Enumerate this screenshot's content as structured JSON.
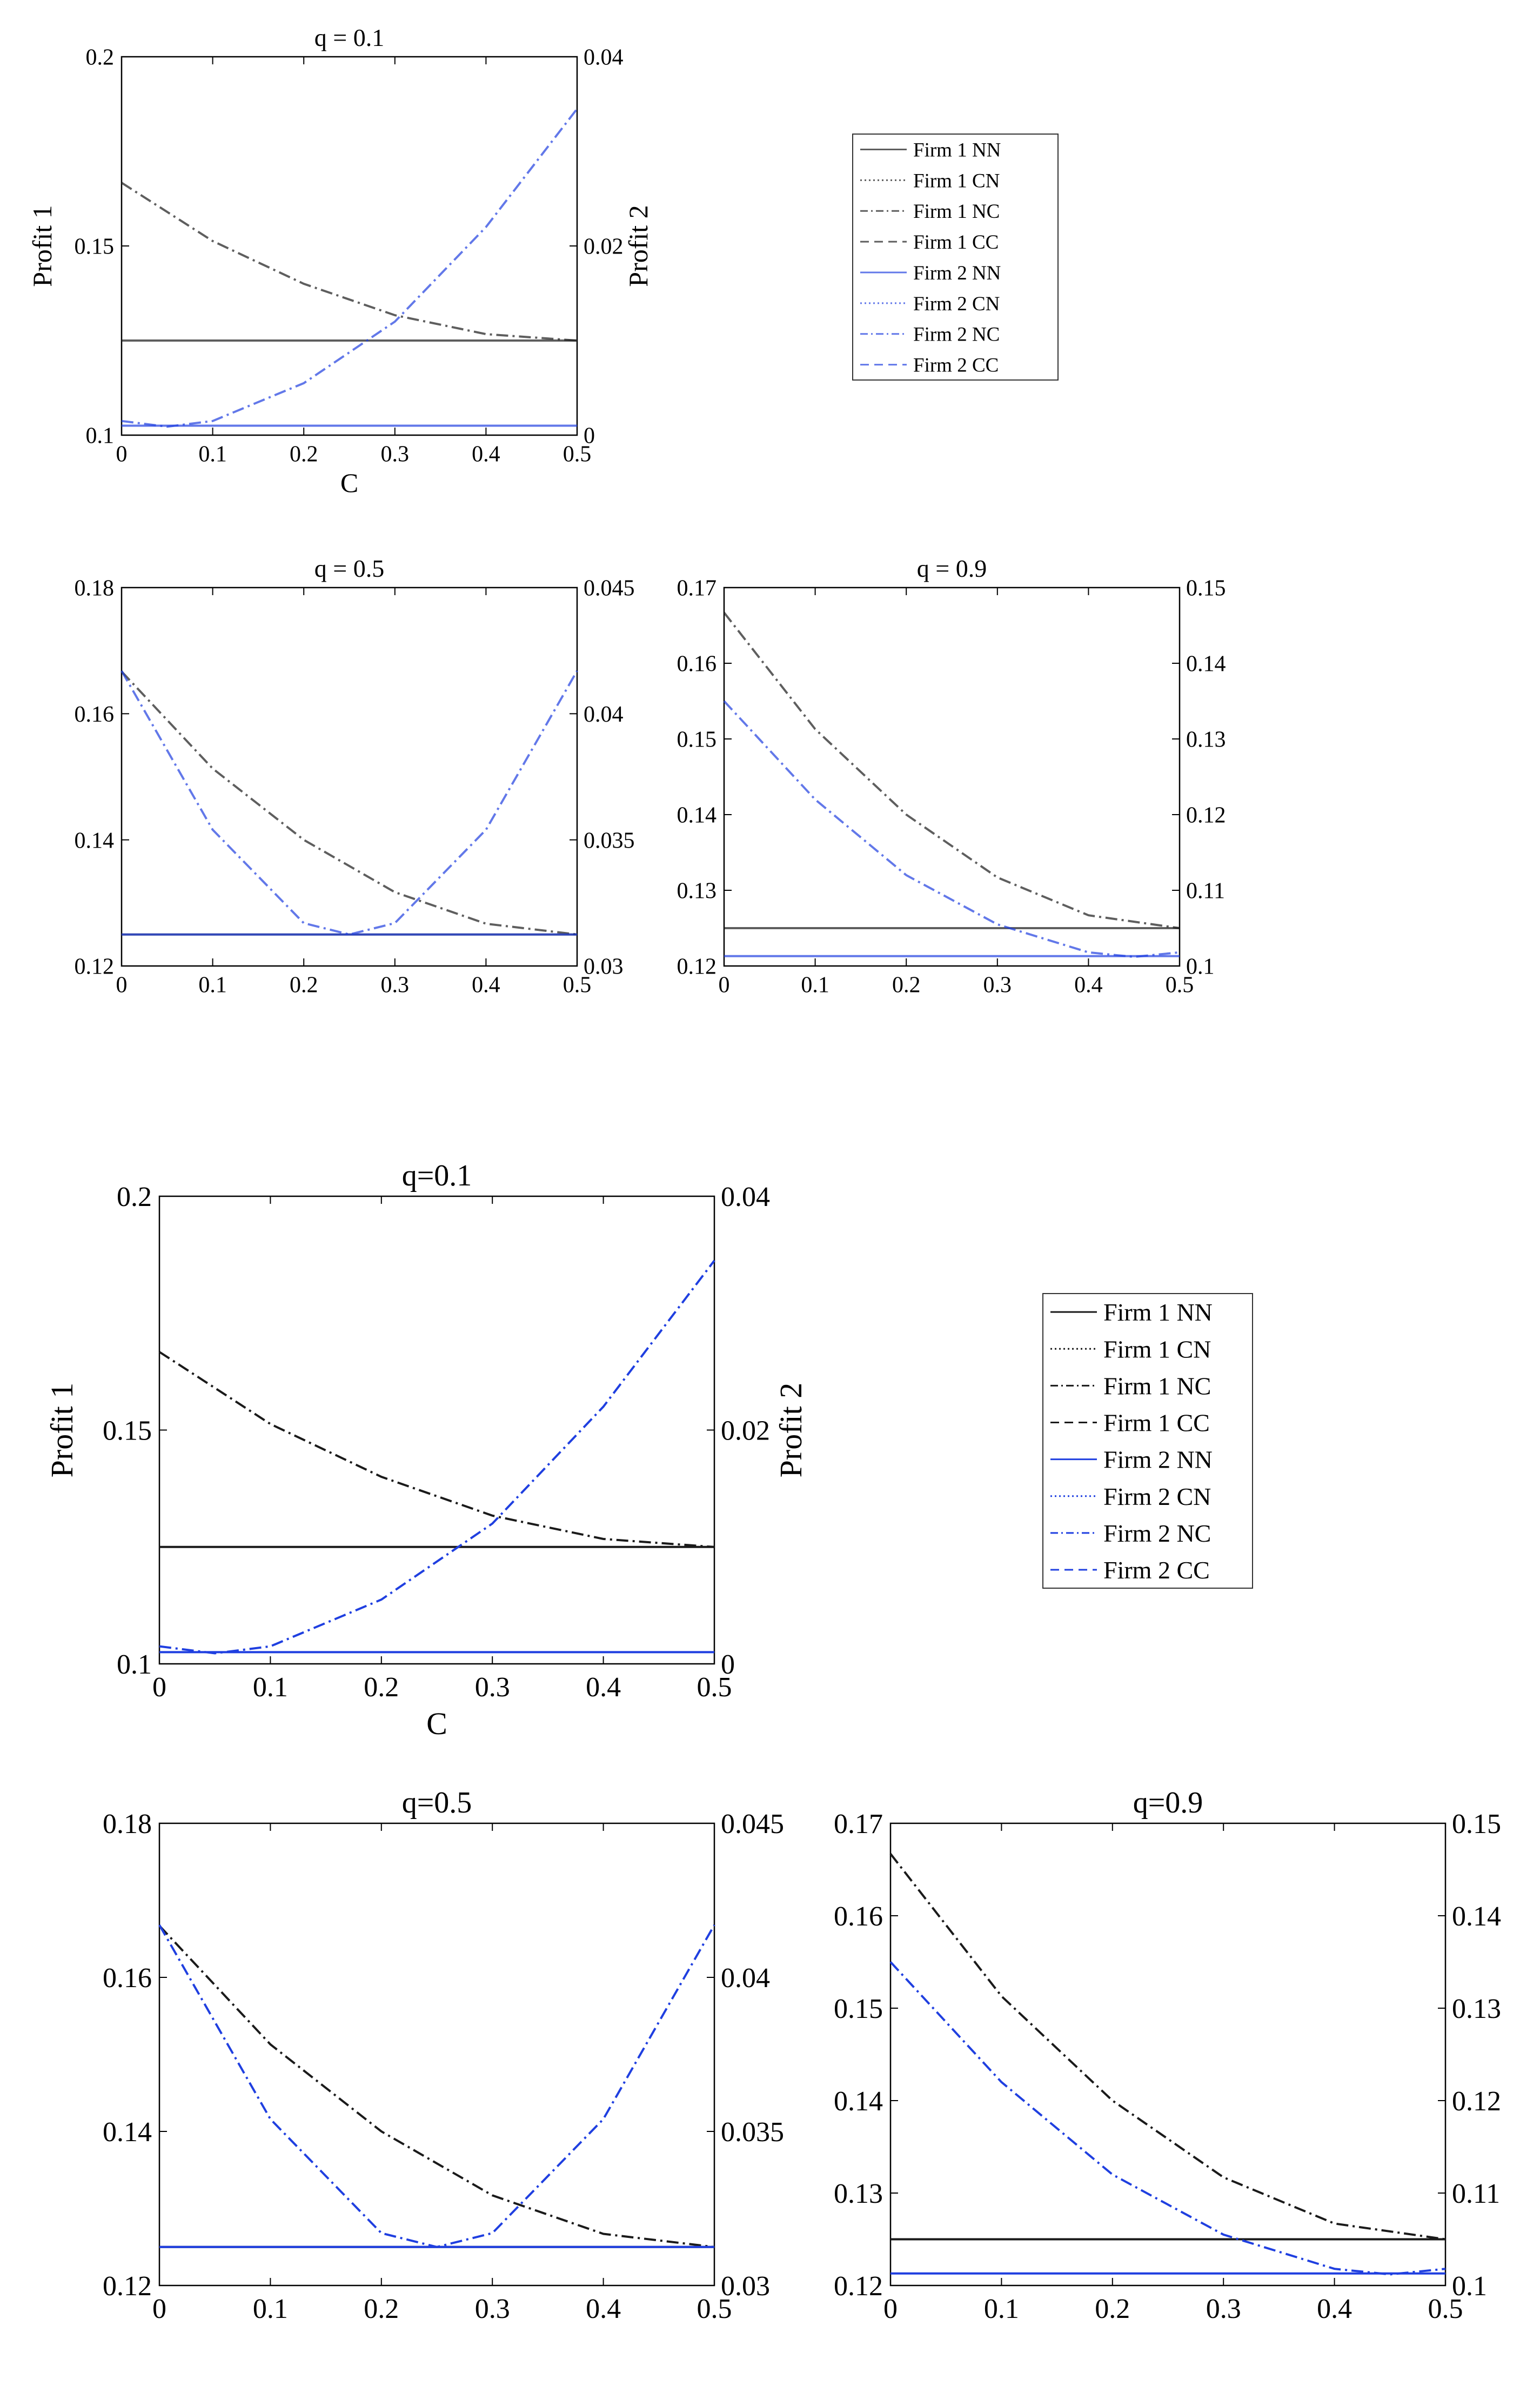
{
  "colors": {
    "firm1": "#1a1a1a",
    "firm2": "#1f3fe0",
    "axis": "#000000",
    "legend_border": "#333333"
  },
  "versions": [
    {
      "panels": [
        {
          "title": "q = 0.1",
          "xlabel": "C",
          "ylabel_left": "Profit 1",
          "ylabel_right": "Profit 2",
          "y_ticks": [
            "0.1",
            "0.15",
            "0.2"
          ],
          "y2_ticks": [
            "0",
            "0.02",
            "0.04"
          ]
        },
        {
          "title": "q = 0.5",
          "xlabel": "",
          "ylabel_left": "",
          "ylabel_right": "",
          "y_ticks": [
            "0.12",
            "0.14",
            "0.16",
            "0.18"
          ],
          "y2_ticks": [
            "0.03",
            "0.035",
            "0.04",
            "0.045"
          ]
        },
        {
          "title": "q = 0.9",
          "xlabel": "",
          "ylabel_left": "",
          "ylabel_right": "",
          "y_ticks": [
            "0.12",
            "0.13",
            "0.14",
            "0.15",
            "0.16",
            "0.17"
          ],
          "y2_ticks": [
            "0.1",
            "0.11",
            "0.12",
            "0.13",
            "0.14",
            "0.15"
          ]
        }
      ]
    },
    {
      "panels": [
        {
          "title": "q=0.1",
          "xlabel": "C",
          "ylabel_left": "Profit 1",
          "ylabel_right": "Profit 2",
          "y_ticks": [
            "0.1",
            "0.15",
            "0.2"
          ],
          "y2_ticks": [
            "0",
            "0.02",
            "0.04"
          ]
        },
        {
          "title": "q=0.5",
          "xlabel": "",
          "ylabel_left": "",
          "ylabel_right": "",
          "y_ticks": [
            "0.12",
            "0.14",
            "0.16",
            "0.18"
          ],
          "y2_ticks": [
            "0.03",
            "0.035",
            "0.04",
            "0.045"
          ]
        },
        {
          "title": "q=0.9",
          "xlabel": "",
          "ylabel_left": "",
          "ylabel_right": "",
          "y_ticks": [
            "0.12",
            "0.13",
            "0.14",
            "0.15",
            "0.16",
            "0.17"
          ],
          "y2_ticks": [
            "0.1",
            "0.11",
            "0.12",
            "0.13",
            "0.14",
            "0.15"
          ]
        }
      ]
    }
  ],
  "x_ticks": [
    "0",
    "0.1",
    "0.2",
    "0.3",
    "0.4",
    "0.5"
  ],
  "legend": [
    {
      "label": "Firm 1 NN",
      "firm": 1,
      "style": "solid"
    },
    {
      "label": "Firm 1 CN",
      "firm": 1,
      "style": "dotted"
    },
    {
      "label": "Firm 1 NC",
      "firm": 1,
      "style": "dashdot"
    },
    {
      "label": "Firm 1 CC",
      "firm": 1,
      "style": "dashed"
    },
    {
      "label": "Firm 2 NN",
      "firm": 2,
      "style": "solid"
    },
    {
      "label": "Firm 2 CN",
      "firm": 2,
      "style": "dotted"
    },
    {
      "label": "Firm 2 NC",
      "firm": 2,
      "style": "dashdot"
    },
    {
      "label": "Firm 2 CC",
      "firm": 2,
      "style": "dashed"
    }
  ],
  "chart_data": [
    {
      "type": "line",
      "title": "q = 0.1",
      "xlabel": "C",
      "ylabel": "Profit 1",
      "y2label": "Profit 2",
      "xlim": [
        0,
        0.5
      ],
      "ylim": [
        0.1,
        0.2
      ],
      "y2lim": [
        0,
        0.04
      ],
      "grid": false,
      "legend_position": "right",
      "series": [
        {
          "name": "Firm 1 NN",
          "axis": "left",
          "x": [
            0,
            0.5
          ],
          "y": [
            0.125,
            0.125
          ]
        },
        {
          "name": "Firm 1 NC",
          "axis": "left",
          "x": [
            0,
            0.1,
            0.2,
            0.3,
            0.4,
            0.5
          ],
          "y": [
            0.1667,
            0.1513,
            0.14,
            0.1317,
            0.1267,
            0.125
          ]
        },
        {
          "name": "Firm 2 NN",
          "axis": "right",
          "x": [
            0,
            0.5
          ],
          "y": [
            0.001,
            0.001
          ]
        },
        {
          "name": "Firm 2 NC",
          "axis": "right",
          "x": [
            0,
            0.05,
            0.1,
            0.2,
            0.3,
            0.4,
            0.5
          ],
          "y": [
            0.0015,
            0.0009,
            0.0015,
            0.0055,
            0.012,
            0.022,
            0.0345
          ]
        }
      ]
    },
    {
      "type": "line",
      "title": "q = 0.5",
      "xlim": [
        0,
        0.5
      ],
      "ylim": [
        0.12,
        0.18
      ],
      "y2lim": [
        0.03,
        0.045
      ],
      "grid": false,
      "series": [
        {
          "name": "Firm 1 NN",
          "axis": "left",
          "x": [
            0,
            0.5
          ],
          "y": [
            0.125,
            0.125
          ]
        },
        {
          "name": "Firm 1 NC",
          "axis": "left",
          "x": [
            0,
            0.1,
            0.2,
            0.3,
            0.4,
            0.5
          ],
          "y": [
            0.1667,
            0.1513,
            0.14,
            0.1317,
            0.1267,
            0.125
          ]
        },
        {
          "name": "Firm 2 NN",
          "axis": "right",
          "x": [
            0,
            0.5
          ],
          "y": [
            0.03125,
            0.03125
          ]
        },
        {
          "name": "Firm 2 NC",
          "axis": "right",
          "x": [
            0,
            0.1,
            0.2,
            0.25,
            0.3,
            0.4,
            0.5
          ],
          "y": [
            0.0417,
            0.0354,
            0.0317,
            0.03125,
            0.0317,
            0.0354,
            0.0417
          ]
        }
      ]
    },
    {
      "type": "line",
      "title": "q = 0.9",
      "xlim": [
        0,
        0.5
      ],
      "ylim": [
        0.12,
        0.17
      ],
      "y2lim": [
        0.1,
        0.15
      ],
      "grid": false,
      "series": [
        {
          "name": "Firm 1 NN",
          "axis": "left",
          "x": [
            0,
            0.5
          ],
          "y": [
            0.125,
            0.125
          ]
        },
        {
          "name": "Firm 1 NC",
          "axis": "left",
          "x": [
            0,
            0.1,
            0.2,
            0.3,
            0.4,
            0.5
          ],
          "y": [
            0.1667,
            0.1513,
            0.14,
            0.1317,
            0.1267,
            0.125
          ]
        },
        {
          "name": "Firm 2 NN",
          "axis": "right",
          "x": [
            0,
            0.5
          ],
          "y": [
            0.1013,
            0.1013
          ]
        },
        {
          "name": "Firm 2 NC",
          "axis": "right",
          "x": [
            0,
            0.1,
            0.2,
            0.3,
            0.4,
            0.45,
            0.5
          ],
          "y": [
            0.135,
            0.122,
            0.112,
            0.1055,
            0.1018,
            0.1012,
            0.1018
          ]
        }
      ]
    }
  ]
}
